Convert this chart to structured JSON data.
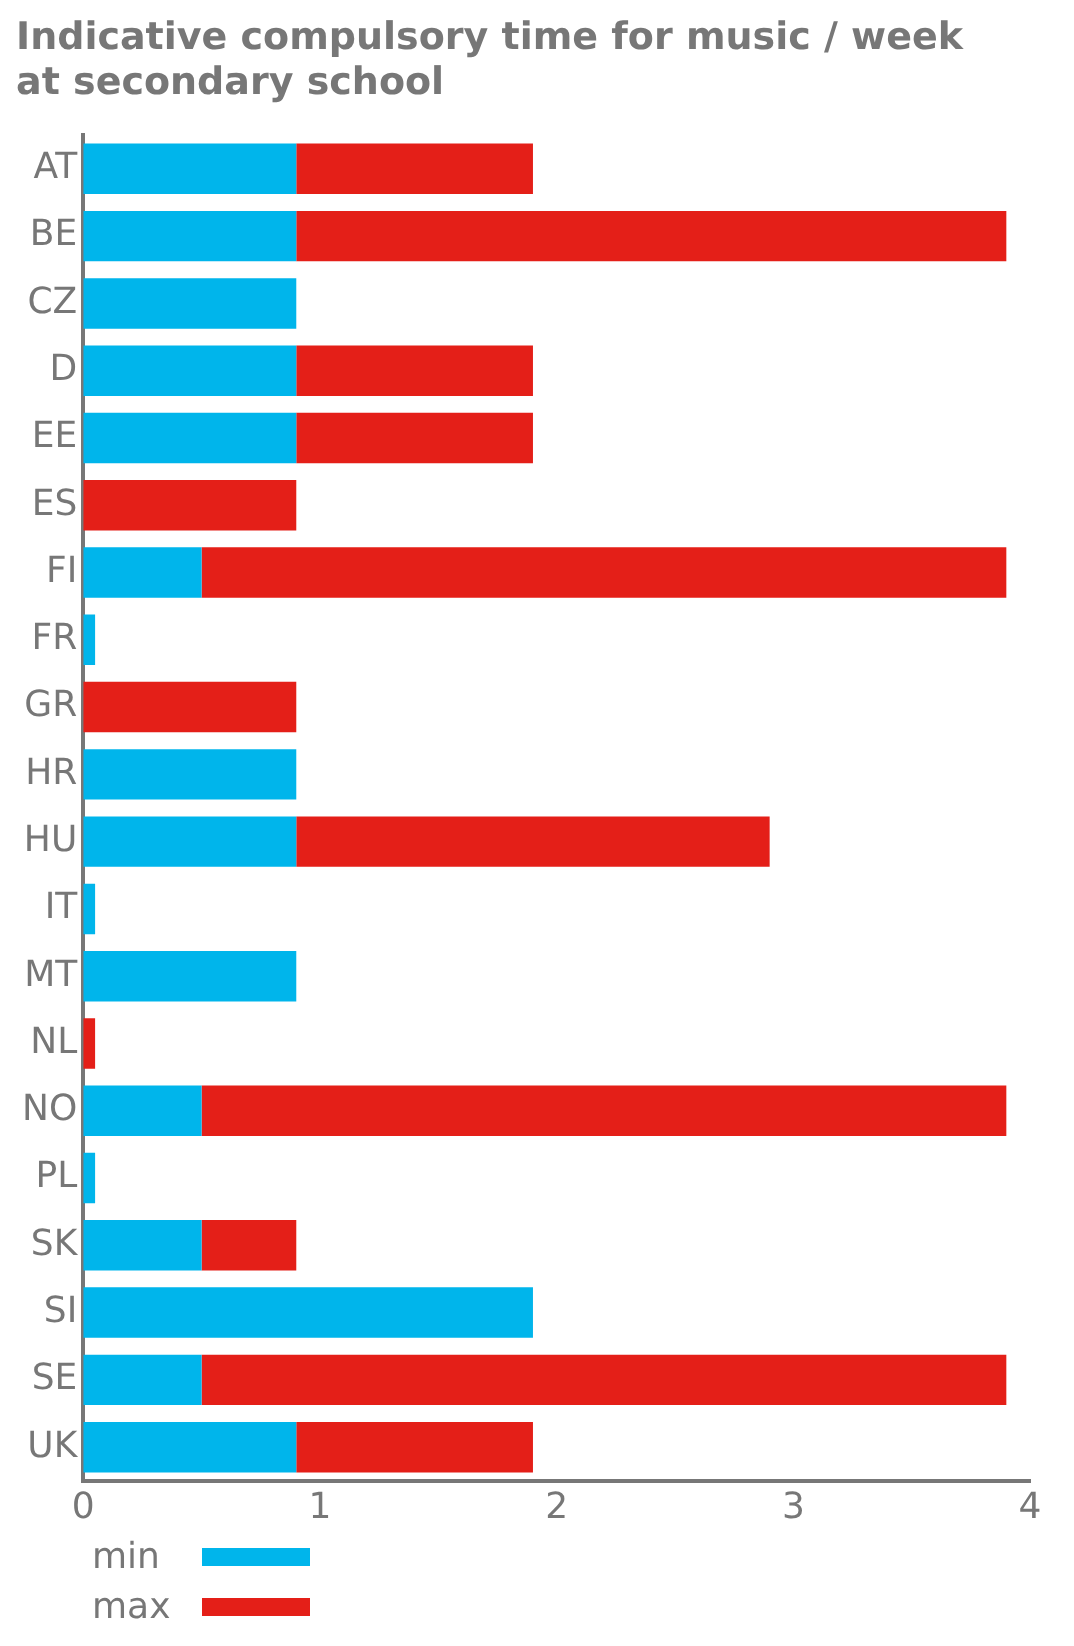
{
  "chart_data": {
    "type": "bar",
    "orientation": "horizontal",
    "stacked": true,
    "title": "Indicative compulsory time for music / week at secondary school",
    "categories": [
      "AT",
      "BE",
      "CZ",
      "D",
      "EE",
      "ES",
      "FI",
      "FR",
      "GR",
      "HR",
      "HU",
      "IT",
      "MT",
      "NL",
      "NO",
      "PL",
      "SK",
      "SI",
      "SE",
      "UK"
    ],
    "series": [
      {
        "name": "min",
        "color": "#00b5eb",
        "values": [
          0.9,
          0.9,
          0.9,
          0.9,
          0.9,
          null,
          0.5,
          0.05,
          null,
          0.9,
          0.9,
          0.05,
          0.9,
          null,
          0.5,
          0.05,
          0.5,
          1.9,
          0.5,
          0.9
        ]
      },
      {
        "name": "max",
        "color": "#e41f18",
        "values": [
          1.0,
          3.0,
          null,
          1.0,
          1.0,
          0.9,
          3.4,
          null,
          0.9,
          null,
          2.0,
          null,
          null,
          0.05,
          3.4,
          null,
          0.4,
          null,
          3.4,
          1.0
        ]
      }
    ],
    "xlim": [
      0,
      4
    ],
    "xticks": [
      0,
      1,
      2,
      3,
      4
    ],
    "grid": false,
    "legend": "bottom left"
  }
}
